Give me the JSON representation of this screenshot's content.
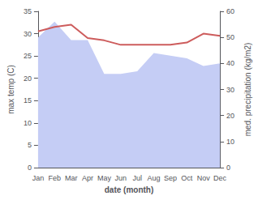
{
  "chart_data": {
    "type": "line",
    "xlabel": "date (month)",
    "ylabel": "max temp (C)",
    "y2label": "med. precipitation (kg/m2)",
    "categories": [
      "Jan",
      "Feb",
      "Mar",
      "Apr",
      "May",
      "Jun",
      "Jul",
      "Aug",
      "Sep",
      "Oct",
      "Nov",
      "Dec"
    ],
    "series": [
      {
        "type": "area",
        "axis": "y2",
        "color": "#c5cdf5",
        "values": [
          50.0,
          56.0,
          49.0,
          49.0,
          36.0,
          36.0,
          37.0,
          44.0,
          43.0,
          42.0,
          39.0,
          40.0
        ]
      },
      {
        "type": "line",
        "color": "#cd5c5c",
        "values": [
          30.5,
          31.5,
          32.0,
          29.0,
          28.5,
          27.5,
          27.5,
          27.5,
          27.5,
          28.0,
          30.0,
          29.5
        ]
      }
    ],
    "ylim": [
      0,
      35
    ],
    "yticks": [
      0,
      5,
      10,
      15,
      20,
      25,
      30,
      35
    ],
    "y2lim": [
      0,
      60
    ],
    "y2ticks": [
      0,
      10,
      20,
      30,
      40,
      50,
      60
    ],
    "grid": false
  }
}
